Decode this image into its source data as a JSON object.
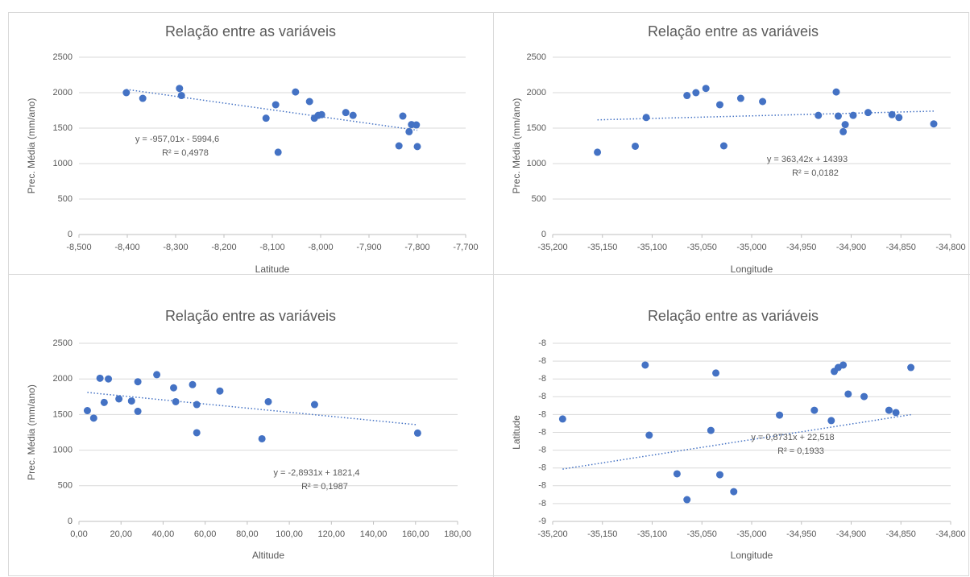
{
  "chart_data": [
    {
      "type": "scatter",
      "title": "Relação entre as variáveis",
      "x_label": "Latitude",
      "y_label": "Prec. Média (mm/ano)",
      "color": "#4472c4",
      "grid": true,
      "x": [
        -8.402,
        -8.368,
        -8.292,
        -8.288,
        -8.093,
        -8.113,
        -8.052,
        -8.088,
        -8.023,
        -8.005,
        -7.998,
        -7.948,
        -7.933,
        -7.83,
        -7.838,
        -7.812,
        -7.802,
        -7.817,
        -7.8,
        -8.013
      ],
      "values": [
        2000,
        1920,
        2060,
        1960,
        1830,
        1640,
        2010,
        1160,
        1875,
        1680,
        1690,
        1720,
        1680,
        1670,
        1250,
        1550,
        1545,
        1450,
        1240,
        1640
      ],
      "xlim": [
        -8.5,
        -7.7
      ],
      "xticks": [
        {
          "value": -8.5,
          "label": "-8,500"
        },
        {
          "value": -8.4,
          "label": "-8,400"
        },
        {
          "value": -8.3,
          "label": "-8,300"
        },
        {
          "value": -8.2,
          "label": "-8,200"
        },
        {
          "value": -8.1,
          "label": "-8,100"
        },
        {
          "value": -8.0,
          "label": "-8,000"
        },
        {
          "value": -7.9,
          "label": "-7,900"
        },
        {
          "value": -7.8,
          "label": "-7,800"
        },
        {
          "value": -7.7,
          "label": "-7,700"
        }
      ],
      "ylim": [
        0,
        2500
      ],
      "yticks": [
        0,
        500,
        1000,
        1500,
        2000,
        2500
      ],
      "trendline": {
        "slope": -957.01,
        "intercept": -5994.6,
        "equation": "y = -957,01x - 5994,6",
        "r2": "R² = 0,4978"
      }
    },
    {
      "type": "scatter",
      "title": "Relação entre as variáveis",
      "x_label": "Longitude",
      "y_label": "Prec. Média (mm/ano)",
      "color": "#4472c4",
      "grid": true,
      "x": [
        -35.155,
        -35.106,
        -35.117,
        -35.065,
        -35.056,
        -35.046,
        -35.032,
        -35.028,
        -35.011,
        -34.989,
        -34.933,
        -34.915,
        -34.913,
        -34.906,
        -34.908,
        -34.898,
        -34.883,
        -34.859,
        -34.852,
        -34.817
      ],
      "values": [
        1160,
        1650,
        1245,
        1960,
        2000,
        2060,
        1830,
        1250,
        1920,
        1875,
        1680,
        2010,
        1670,
        1550,
        1450,
        1680,
        1720,
        1690,
        1650,
        1560
      ],
      "xlim": [
        -35.2,
        -34.8
      ],
      "xticks": [
        {
          "value": -35.2,
          "label": "-35,200"
        },
        {
          "value": -35.15,
          "label": "-35,150"
        },
        {
          "value": -35.1,
          "label": "-35,100"
        },
        {
          "value": -35.05,
          "label": "-35,050"
        },
        {
          "value": -35.0,
          "label": "-35,000"
        },
        {
          "value": -34.95,
          "label": "-34,950"
        },
        {
          "value": -34.9,
          "label": "-34,900"
        },
        {
          "value": -34.85,
          "label": "-34,850"
        },
        {
          "value": -34.8,
          "label": "-34,800"
        }
      ],
      "ylim": [
        0,
        2500
      ],
      "yticks": [
        0,
        500,
        1000,
        1500,
        2000,
        2500
      ],
      "trendline": {
        "slope": 363.42,
        "intercept": 14393,
        "equation": "y = 363,42x + 14393",
        "r2": "R² = 0,0182"
      }
    },
    {
      "type": "scatter",
      "title": "Relação entre as variáveis",
      "x_label": "Altitude",
      "y_label": "Prec. Média (mm/ano)",
      "color": "#4472c4",
      "grid": true,
      "x": [
        4,
        7,
        10,
        12,
        14,
        19,
        25,
        28,
        28,
        37,
        45,
        46,
        54,
        56,
        56,
        67,
        87,
        90,
        112,
        161
      ],
      "values": [
        1555,
        1450,
        2010,
        1670,
        2000,
        1720,
        1690,
        1960,
        1545,
        2060,
        1875,
        1680,
        1920,
        1640,
        1245,
        1830,
        1160,
        1680,
        1640,
        1240
      ],
      "xlim": [
        0,
        180
      ],
      "xticks": [
        {
          "value": 0,
          "label": "0,00"
        },
        {
          "value": 20,
          "label": "20,00"
        },
        {
          "value": 40,
          "label": "40,00"
        },
        {
          "value": 60,
          "label": "60,00"
        },
        {
          "value": 80,
          "label": "80,00"
        },
        {
          "value": 100,
          "label": "100,00"
        },
        {
          "value": 120,
          "label": "120,00"
        },
        {
          "value": 140,
          "label": "140,00"
        },
        {
          "value": 160,
          "label": "160,00"
        },
        {
          "value": 180,
          "label": "180,00"
        }
      ],
      "ylim": [
        0,
        2500
      ],
      "yticks": [
        0,
        500,
        1000,
        1500,
        2000,
        2500
      ],
      "trendline": {
        "slope": -2.8931,
        "intercept": 1821.4,
        "equation": "y = -2,8931x + 1821,4",
        "r2": "R² = 0,1987"
      }
    },
    {
      "type": "scatter",
      "title": "Relação entre as variáveis",
      "x_label": "Longitude",
      "y_label": "Latitude",
      "color": "#4472c4",
      "grid": true,
      "x": [
        -35.19,
        -35.107,
        -35.103,
        -35.075,
        -35.065,
        -35.036,
        -35.041,
        -35.032,
        -35.018,
        -34.972,
        -34.937,
        -34.92,
        -34.917,
        -34.913,
        -34.908,
        -34.903,
        -34.887,
        -34.862,
        -34.855,
        -34.84
      ],
      "values": [
        -7.925,
        -7.622,
        -8.016,
        -8.233,
        -8.378,
        -7.667,
        -7.989,
        -8.238,
        -8.333,
        -7.903,
        -7.876,
        -7.934,
        -7.658,
        -7.636,
        -7.622,
        -7.785,
        -7.799,
        -7.876,
        -7.889,
        -7.636
      ],
      "xlim": [
        -35.2,
        -34.8
      ],
      "xticks": [
        {
          "value": -35.2,
          "label": "-35,200"
        },
        {
          "value": -35.15,
          "label": "-35,150"
        },
        {
          "value": -35.1,
          "label": "-35,100"
        },
        {
          "value": -35.05,
          "label": "-35,050"
        },
        {
          "value": -35.0,
          "label": "-35,000"
        },
        {
          "value": -34.95,
          "label": "-34,950"
        },
        {
          "value": -34.9,
          "label": "-34,900"
        },
        {
          "value": -34.85,
          "label": "-34,850"
        },
        {
          "value": -34.8,
          "label": "-34,800"
        }
      ],
      "ylim": [
        -8.5,
        -7.5
      ],
      "yticks": [
        {
          "value": -8.5,
          "label": "-9"
        },
        {
          "value": -8.4,
          "label": "-8"
        },
        {
          "value": -8.3,
          "label": "-8"
        },
        {
          "value": -8.2,
          "label": "-8"
        },
        {
          "value": -8.1,
          "label": "-8"
        },
        {
          "value": -8.0,
          "label": "-8"
        },
        {
          "value": -7.9,
          "label": "-8"
        },
        {
          "value": -7.8,
          "label": "-8"
        },
        {
          "value": -7.7,
          "label": "-8"
        },
        {
          "value": -7.6,
          "label": "-8"
        },
        {
          "value": -7.5,
          "label": "-8"
        }
      ],
      "trendline": {
        "slope": 0.8731,
        "intercept": 22.518,
        "equation": "y = 0,8731x + 22,518",
        "r2": "R² = 0,1933"
      }
    }
  ]
}
